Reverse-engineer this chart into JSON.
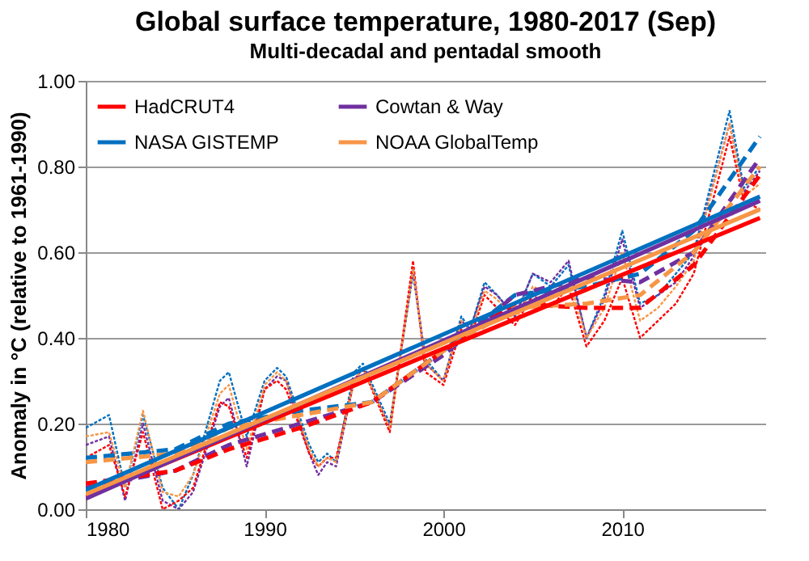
{
  "chart_data": {
    "type": "line",
    "title": "Global surface temperature, 1980-2017 (Sep)",
    "subtitle": "Multi-decadal and pentadal smooth",
    "ylabel": "Anomaly in °C (relative to 1961-1990)",
    "xlim": [
      1980,
      2018
    ],
    "xticks": [
      1980,
      1990,
      2000,
      2010
    ],
    "ylim": [
      0,
      1
    ],
    "yticks": [
      {
        "value": 0,
        "label": "0.00"
      },
      {
        "value": 0.2,
        "label": "0.20"
      },
      {
        "value": 0.4,
        "label": "0.40"
      },
      {
        "value": 0.6,
        "label": "0.60"
      },
      {
        "value": 0.8,
        "label": "0.80"
      },
      {
        "value": 1,
        "label": "1.00"
      }
    ],
    "grid": "y",
    "legend": "top left",
    "marker": "none",
    "x": [
      1980,
      1981.3,
      1982.2,
      1983.2,
      1984.3,
      1985.2,
      1986,
      1987.5,
      1988,
      1989,
      1990,
      1990.7,
      1991.2,
      1992.5,
      1993,
      1993.5,
      1994,
      1995,
      1995.5,
      1997,
      1998.3,
      1999,
      2000,
      2001,
      2001.5,
      2002.3,
      2003,
      2004,
      2005,
      2006,
      2007,
      2008,
      2009,
      2010,
      2011,
      2012,
      2013,
      2014,
      2016,
      2016.8,
      2017.7
    ],
    "series": [
      {
        "color": "#0070c0",
        "line_style": "dotted",
        "values": [
          0.19,
          0.22,
          0.05,
          0.22,
          0.05,
          0.0,
          0.08,
          0.3,
          0.32,
          0.17,
          0.3,
          0.33,
          0.31,
          0.15,
          0.11,
          0.13,
          0.11,
          0.32,
          0.34,
          0.2,
          0.55,
          0.35,
          0.3,
          0.45,
          0.42,
          0.53,
          0.5,
          0.45,
          0.55,
          0.52,
          0.57,
          0.4,
          0.5,
          0.65,
          0.48,
          0.5,
          0.55,
          0.6,
          0.93,
          0.75,
          0.8
        ]
      },
      {
        "color": "#7030a0",
        "line_style": "dotted",
        "values": [
          0.15,
          0.17,
          0.02,
          0.2,
          0.02,
          0.0,
          0.04,
          0.24,
          0.26,
          0.1,
          0.28,
          0.31,
          0.3,
          0.13,
          0.08,
          0.11,
          0.1,
          0.3,
          0.33,
          0.19,
          0.56,
          0.34,
          0.3,
          0.44,
          0.42,
          0.52,
          0.5,
          0.45,
          0.55,
          0.53,
          0.58,
          0.4,
          0.49,
          0.63,
          0.47,
          0.5,
          0.53,
          0.59,
          0.9,
          0.74,
          0.79
        ]
      },
      {
        "color": "#ff0000",
        "line_style": "dotted",
        "values": [
          0.12,
          0.15,
          0.03,
          0.18,
          0.0,
          0.02,
          0.05,
          0.25,
          0.24,
          0.12,
          0.28,
          0.3,
          0.28,
          0.13,
          0.1,
          0.12,
          0.12,
          0.3,
          0.33,
          0.18,
          0.58,
          0.32,
          0.29,
          0.42,
          0.4,
          0.5,
          0.47,
          0.43,
          0.5,
          0.47,
          0.52,
          0.38,
          0.44,
          0.54,
          0.4,
          0.44,
          0.48,
          0.55,
          0.87,
          0.72,
          0.7
        ]
      },
      {
        "color": "#f79646",
        "line_style": "dotted",
        "values": [
          0.17,
          0.18,
          0.05,
          0.23,
          0.04,
          0.03,
          0.08,
          0.27,
          0.29,
          0.14,
          0.29,
          0.32,
          0.3,
          0.14,
          0.1,
          0.12,
          0.11,
          0.3,
          0.33,
          0.19,
          0.56,
          0.34,
          0.3,
          0.44,
          0.41,
          0.51,
          0.49,
          0.44,
          0.52,
          0.5,
          0.54,
          0.4,
          0.47,
          0.6,
          0.44,
          0.47,
          0.52,
          0.58,
          0.9,
          0.73,
          0.76
        ]
      },
      {
        "color": "#0070c0",
        "line_style": "dashed",
        "x": [
          1980,
          1985,
          1988,
          1992,
          1996,
          2000,
          2004,
          2008,
          2011,
          2014,
          2017.7
        ],
        "values": [
          0.12,
          0.14,
          0.2,
          0.23,
          0.25,
          0.37,
          0.5,
          0.52,
          0.55,
          0.65,
          0.87
        ]
      },
      {
        "color": "#7030a0",
        "line_style": "dashed",
        "x": [
          1980,
          1985,
          1988,
          1992,
          1996,
          2000,
          2004,
          2008,
          2011,
          2014,
          2017.7
        ],
        "values": [
          0.05,
          0.09,
          0.15,
          0.2,
          0.25,
          0.36,
          0.5,
          0.54,
          0.53,
          0.6,
          0.82
        ]
      },
      {
        "color": "#ff0000",
        "line_style": "dashed",
        "x": [
          1980,
          1985,
          1988,
          1992,
          1996,
          2000,
          2004,
          2008,
          2011,
          2014,
          2017.7
        ],
        "values": [
          0.06,
          0.09,
          0.14,
          0.19,
          0.25,
          0.37,
          0.48,
          0.47,
          0.47,
          0.57,
          0.78
        ]
      },
      {
        "color": "#f79646",
        "line_style": "dashed",
        "x": [
          1980,
          1985,
          1988,
          1992,
          1996,
          2000,
          2004,
          2008,
          2011,
          2014,
          2017.7
        ],
        "values": [
          0.11,
          0.13,
          0.19,
          0.22,
          0.25,
          0.37,
          0.47,
          0.48,
          0.5,
          0.6,
          0.8
        ]
      },
      {
        "name": "HadCRUT4",
        "color": "#ff0000",
        "line_style": "solid",
        "x": [
          1980,
          2017.7
        ],
        "values": [
          0.03,
          0.68
        ]
      },
      {
        "name": "Cowtan & Way",
        "color": "#7030a0",
        "line_style": "solid",
        "x": [
          1980,
          2017.7
        ],
        "values": [
          0.025,
          0.72
        ]
      },
      {
        "name": "NASA GISTEMP",
        "color": "#0070c0",
        "line_style": "solid",
        "x": [
          1980,
          2017.7
        ],
        "values": [
          0.045,
          0.73
        ]
      },
      {
        "name": "NOAA GlobalTemp",
        "color": "#f79646",
        "line_style": "solid",
        "x": [
          1980,
          2017.7
        ],
        "values": [
          0.035,
          0.7
        ]
      }
    ]
  }
}
